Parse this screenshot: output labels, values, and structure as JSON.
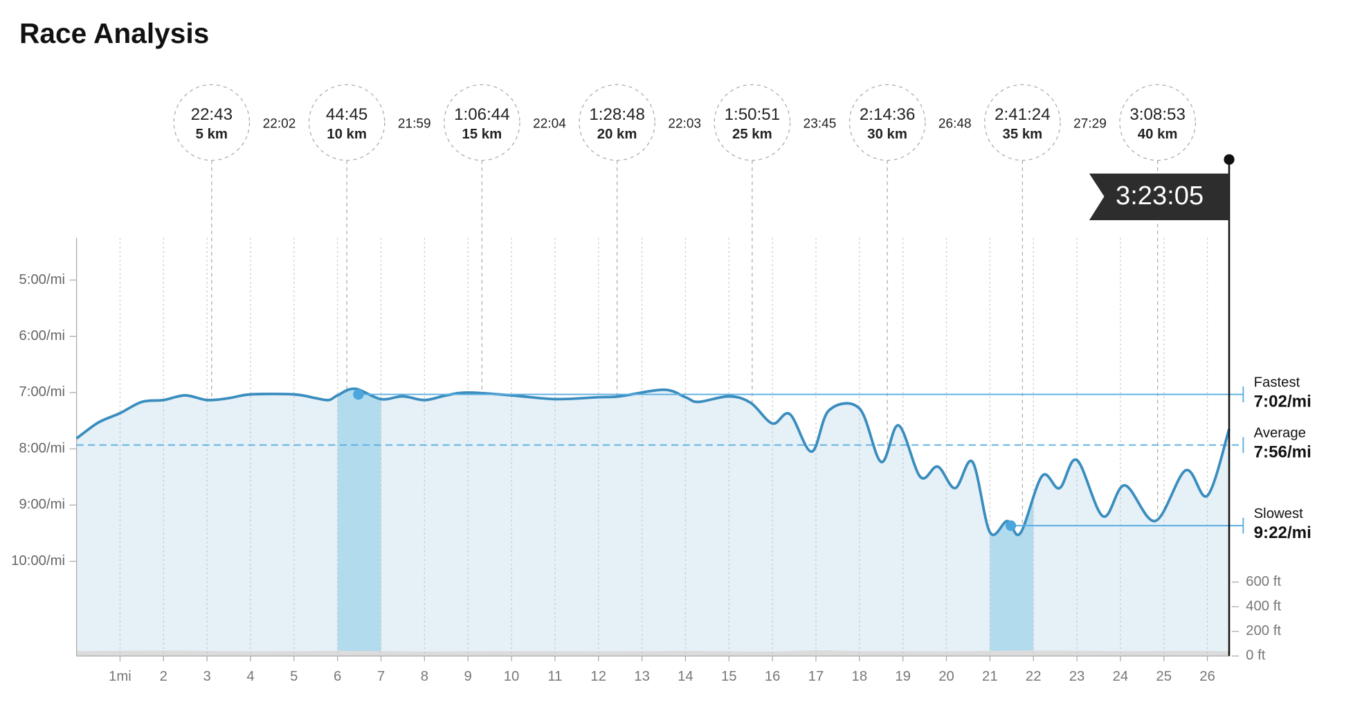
{
  "chart_data": {
    "type": "line",
    "title": "Race Analysis",
    "color": "#3a8dbf",
    "area_color": "#e5f0f7",
    "highlight_color": "#b3dbee",
    "y_inverted": true,
    "ylim": [
      255,
      701
    ],
    "yticks": [
      {
        "value": 300,
        "label": "5:00/mi"
      },
      {
        "value": 360,
        "label": "6:00/mi"
      },
      {
        "value": 420,
        "label": "7:00/mi"
      },
      {
        "value": 480,
        "label": "8:00/mi"
      },
      {
        "value": 540,
        "label": "9:00/mi"
      },
      {
        "value": 600,
        "label": "10:00/mi"
      }
    ],
    "xlim": [
      0,
      26.5
    ],
    "xticks": [
      {
        "value": 1,
        "label": "1mi"
      },
      2,
      3,
      4,
      5,
      6,
      7,
      8,
      9,
      10,
      11,
      12,
      13,
      14,
      15,
      16,
      17,
      18,
      19,
      20,
      21,
      22,
      23,
      24,
      25,
      26
    ],
    "grid": true,
    "x": [
      0,
      0.5,
      1,
      1.5,
      2,
      2.5,
      3,
      3.5,
      4,
      5,
      5.5,
      5.8,
      6,
      6.4,
      7,
      7.5,
      8,
      8.5,
      9,
      10,
      11,
      12,
      12.5,
      13.5,
      14,
      14.3,
      15,
      15.5,
      16,
      16.4,
      16.9,
      17.3,
      18,
      18.5,
      18.9,
      19.4,
      19.8,
      20.2,
      20.6,
      21,
      21.4,
      21.7,
      22.2,
      22.6,
      23,
      23.6,
      24.1,
      24.8,
      25.5,
      26,
      26.5
    ],
    "values": [
      469,
      452,
      442,
      430,
      428,
      423,
      428,
      426,
      422,
      422,
      426,
      428,
      423,
      416,
      427,
      424,
      428,
      423,
      420,
      423,
      427,
      425,
      424,
      417,
      425,
      430,
      424,
      431,
      453,
      443,
      483,
      439,
      437,
      494,
      455,
      510,
      499,
      522,
      494,
      569,
      557,
      570,
      509,
      522,
      492,
      552,
      519,
      557,
      503,
      530,
      459
    ],
    "y2lim": [
      0,
      3393
    ],
    "y2ticks": [
      {
        "value": 600,
        "label": "600 ft"
      },
      {
        "value": 400,
        "label": "400 ft"
      },
      {
        "value": 200,
        "label": "200 ft"
      },
      {
        "value": 0,
        "label": "0 ft"
      }
    ],
    "elevation": {
      "color": "#dcdcdc",
      "x": [
        0,
        2,
        4,
        6,
        8,
        10,
        12,
        14,
        16,
        17,
        18,
        20,
        22,
        24,
        26,
        26.5
      ],
      "values": [
        40,
        45,
        38,
        42,
        36,
        40,
        38,
        42,
        35,
        48,
        40,
        38,
        45,
        40,
        42,
        40
      ]
    },
    "fastest": {
      "label": "Fastest",
      "value": 422,
      "value_label": "7:02/mi",
      "mile": [
        6,
        7
      ],
      "dot_x": 6.48
    },
    "average": {
      "label": "Average",
      "value": 476,
      "value_label": "7:56/mi"
    },
    "slowest": {
      "label": "Slowest",
      "value": 562,
      "value_label": "9:22/mi",
      "mile": [
        21,
        22
      ],
      "dot_x": 21.48
    },
    "splits": [
      {
        "time": "22:43",
        "distance": "5 km",
        "interval": "22:02"
      },
      {
        "time": "44:45",
        "distance": "10 km",
        "interval": "21:59"
      },
      {
        "time": "1:06:44",
        "distance": "15 km",
        "interval": "22:04"
      },
      {
        "time": "1:28:48",
        "distance": "20 km",
        "interval": "22:03"
      },
      {
        "time": "1:50:51",
        "distance": "25 km",
        "interval": "23:45"
      },
      {
        "time": "2:14:36",
        "distance": "30 km",
        "interval": "26:48"
      },
      {
        "time": "2:41:24",
        "distance": "35 km",
        "interval": "27:29"
      },
      {
        "time": "3:08:53",
        "distance": "40 km"
      }
    ],
    "finish_time": "3:23:05"
  }
}
